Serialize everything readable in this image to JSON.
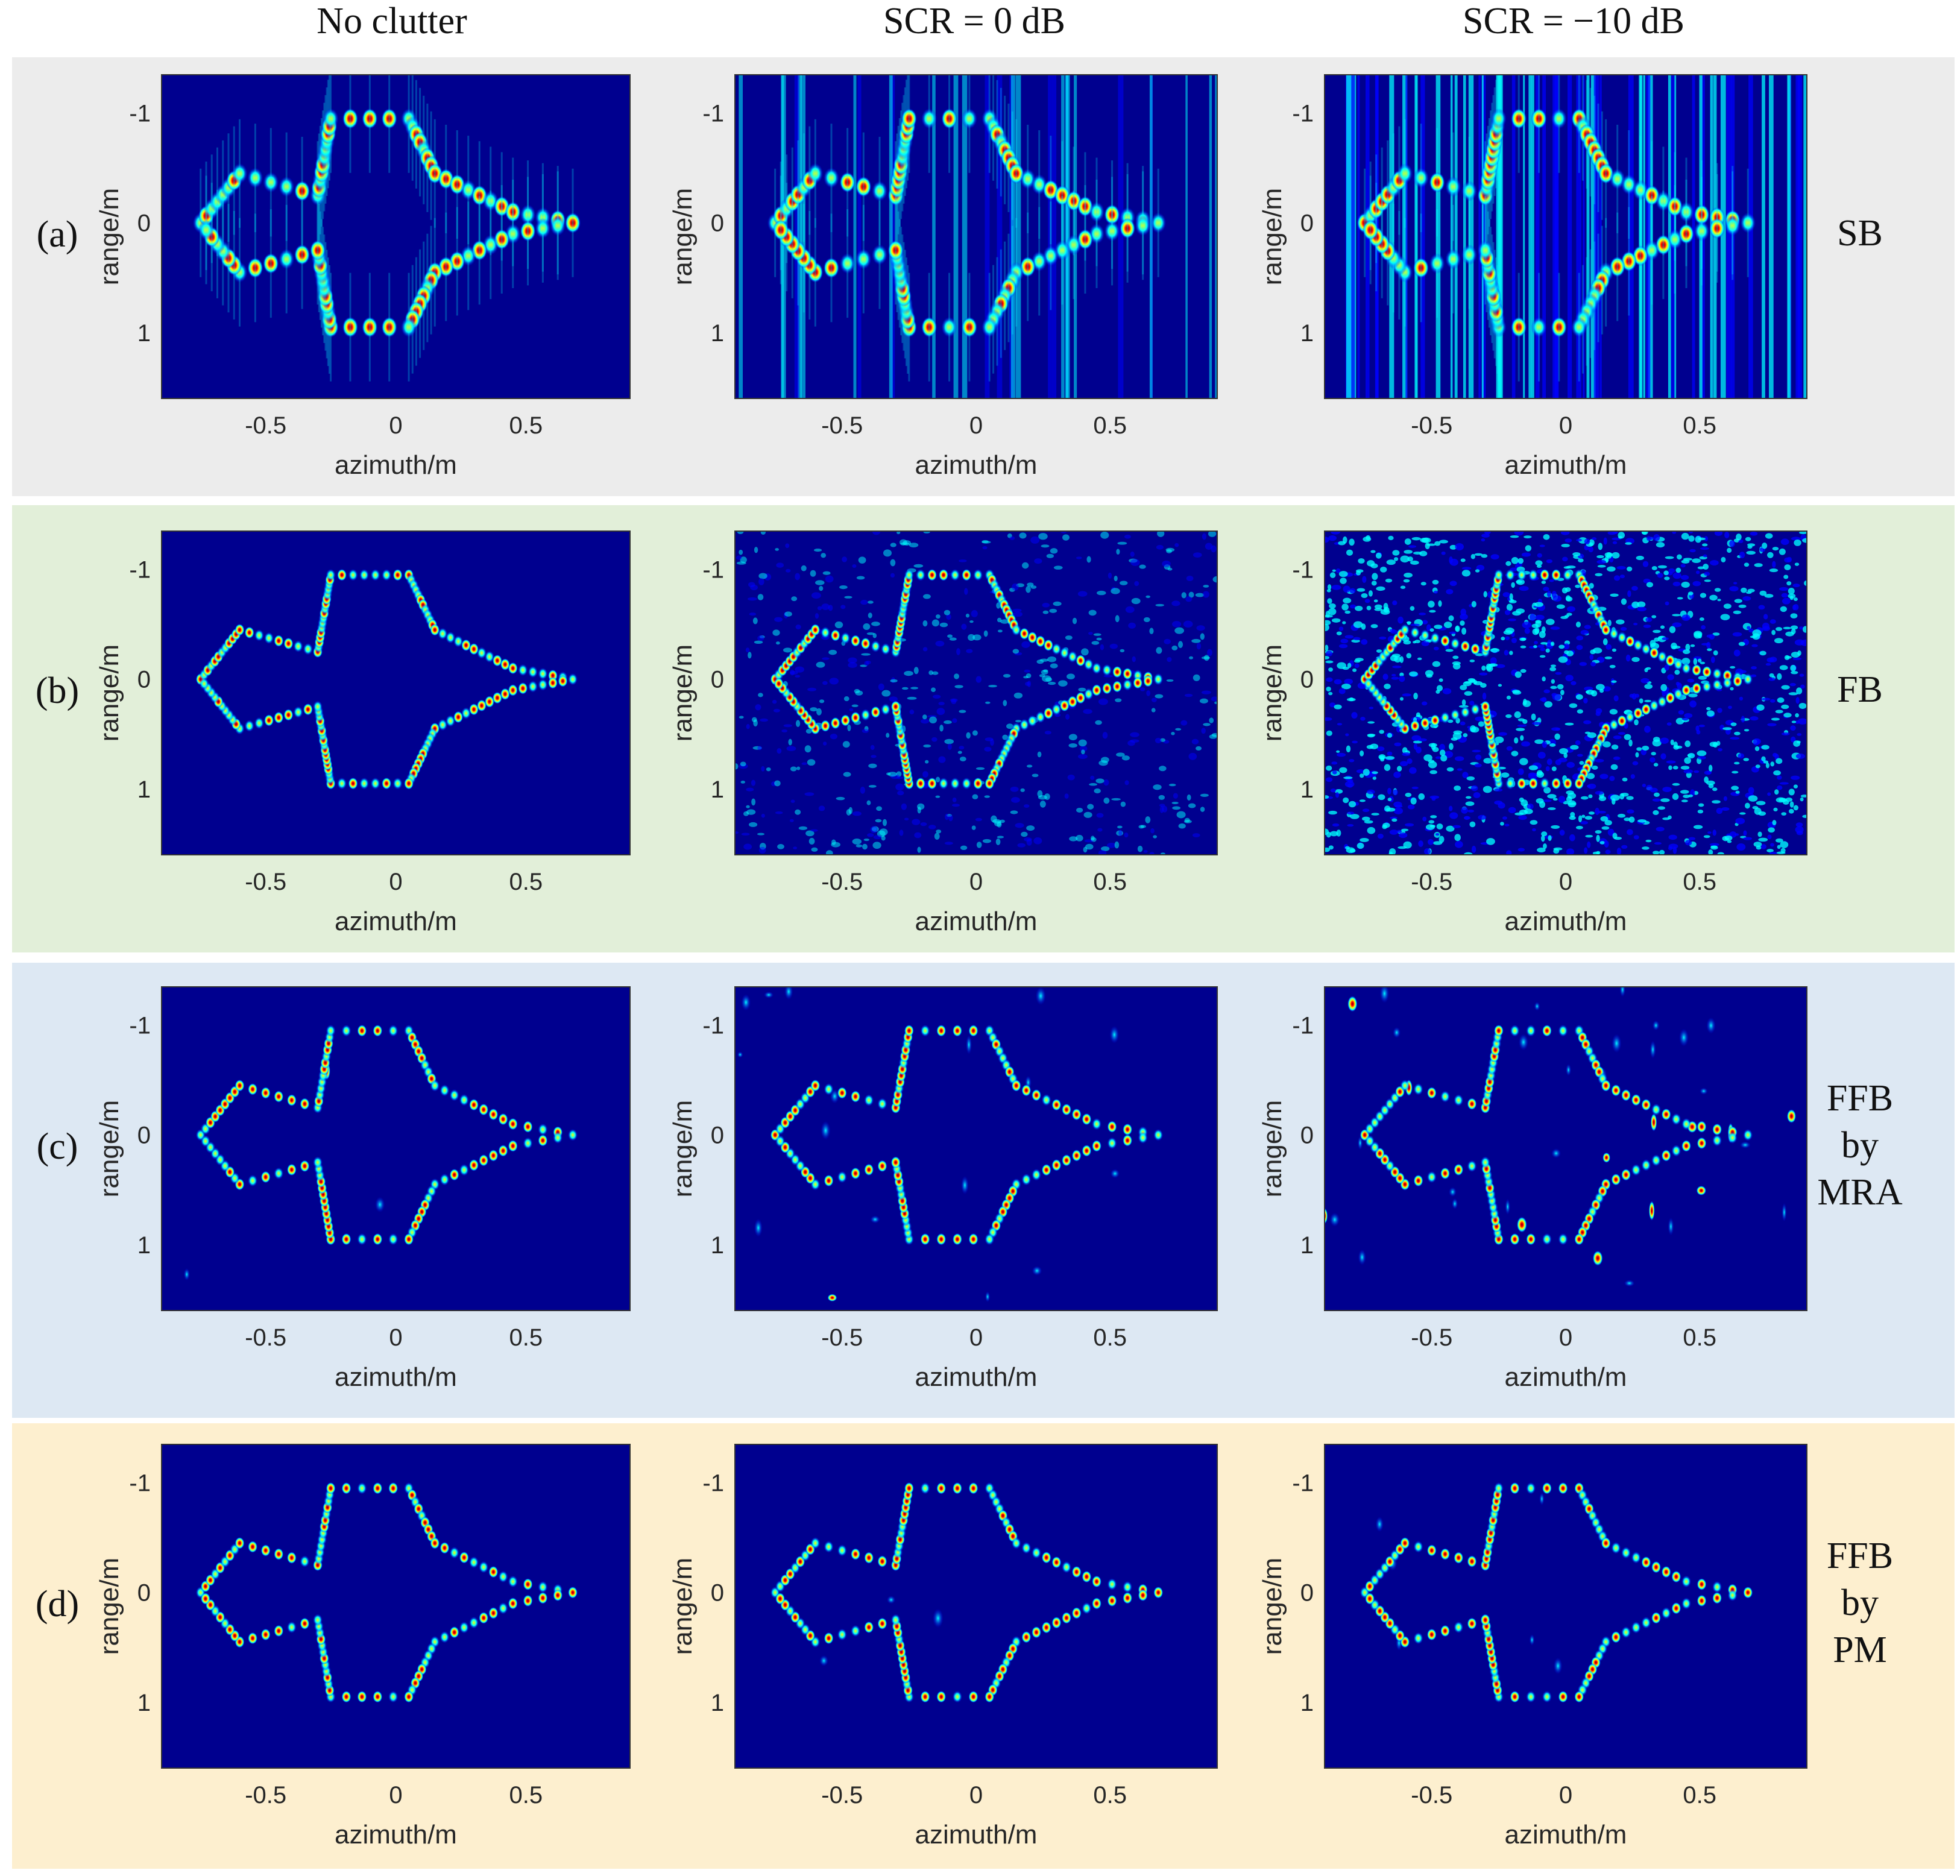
{
  "columns": [
    "No clutter",
    "SCR = 0 dB",
    "SCR = −10 dB"
  ],
  "rows": [
    {
      "letter": "(a)",
      "method_lines": [
        "SB"
      ],
      "bg": "#ececec",
      "method_color": "#111111"
    },
    {
      "letter": "(b)",
      "method_lines": [
        "FB"
      ],
      "bg": "#e2efd9",
      "method_color": "#111111"
    },
    {
      "letter": "(c)",
      "method_lines": [
        "FFB",
        "by",
        "MRA"
      ],
      "bg": "#dde8f3",
      "method_color": "#111111"
    },
    {
      "letter": "(d)",
      "method_lines": [
        "FFB",
        "by",
        "PM"
      ],
      "bg": "#fdefcf",
      "method_color": "#ff0000"
    }
  ],
  "chart_data": {
    "type": "heatmap",
    "colormap": "jet",
    "xlabel": "azimuth/m",
    "ylabel": "range/m",
    "xticks": [
      -0.5,
      0,
      0.5
    ],
    "xtick_labels": [
      "-0.5",
      "0",
      "0.5"
    ],
    "yticks": [
      -1,
      0,
      1
    ],
    "ytick_labels": [
      "-1",
      "0",
      "1"
    ],
    "xlim": [
      -0.9,
      0.9
    ],
    "ylim": [
      -1.35,
      1.6
    ],
    "y_direction": "reversed",
    "grid": false,
    "colors": {
      "background": "#00008f",
      "colormap_stops": [
        "#00008f",
        "#0000ff",
        "#00ffff",
        "#ffff00",
        "#ff0000",
        "#800000"
      ]
    },
    "target_outline": [
      [
        [
          -0.75,
          0.0
        ],
        [
          -0.6,
          -0.45
        ],
        [
          -0.3,
          -0.25
        ],
        [
          -0.25,
          -0.95
        ],
        [
          0.05,
          -0.95
        ],
        [
          0.15,
          -0.45
        ],
        [
          0.45,
          -0.1
        ],
        [
          0.68,
          0.0
        ],
        [
          0.45,
          0.1
        ],
        [
          0.15,
          0.45
        ],
        [
          0.05,
          0.95
        ],
        [
          -0.25,
          0.95
        ],
        [
          -0.3,
          0.25
        ],
        [
          -0.6,
          0.45
        ],
        [
          -0.75,
          0.0
        ]
      ]
    ],
    "panels": [
      [
        {
          "row": "(a)",
          "column": "No clutter",
          "style": "sidelobe",
          "clutter_level": 0.0
        },
        {
          "row": "(a)",
          "column": "SCR = 0 dB",
          "style": "sidelobe",
          "clutter_level": 0.35
        },
        {
          "row": "(a)",
          "column": "SCR = −10 dB",
          "style": "sidelobe",
          "clutter_level": 0.75
        }
      ],
      [
        {
          "row": "(b)",
          "column": "No clutter",
          "style": "focused",
          "clutter_level": 0.0
        },
        {
          "row": "(b)",
          "column": "SCR = 0 dB",
          "style": "focused",
          "clutter_level": 0.4
        },
        {
          "row": "(b)",
          "column": "SCR = −10 dB",
          "style": "focused",
          "clutter_level": 0.95
        }
      ],
      [
        {
          "row": "(c)",
          "column": "No clutter",
          "style": "sparse",
          "clutter_level": 0.05
        },
        {
          "row": "(c)",
          "column": "SCR = 0 dB",
          "style": "sparse",
          "clutter_level": 0.3
        },
        {
          "row": "(c)",
          "column": "SCR = −10 dB",
          "style": "sparse",
          "clutter_level": 0.6
        }
      ],
      [
        {
          "row": "(d)",
          "column": "No clutter",
          "style": "sparse",
          "clutter_level": 0.0
        },
        {
          "row": "(d)",
          "column": "SCR = 0 dB",
          "style": "sparse",
          "clutter_level": 0.05
        },
        {
          "row": "(d)",
          "column": "SCR = −10 dB",
          "style": "sparse",
          "clutter_level": 0.1
        }
      ]
    ]
  }
}
